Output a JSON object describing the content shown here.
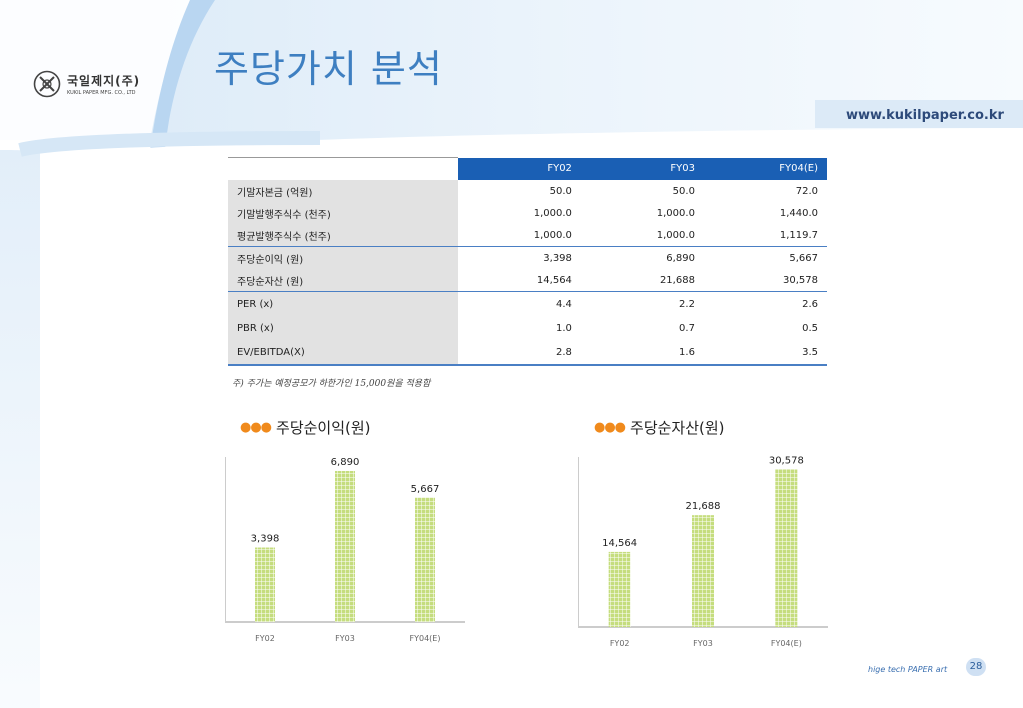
{
  "title": "주당가치 분석",
  "website": "www.kukilpaper.co.kr",
  "logo": {
    "name_kr": "국일제지(주)",
    "name_en": "KUKIL PAPER MFG. CO., LTD",
    "icon": "logo-circle-x-icon"
  },
  "table": {
    "columns": [
      "FY02",
      "FY03",
      "FY04(E)"
    ],
    "rows": [
      {
        "label": "기말자본금 (억원)",
        "values": [
          "50.0",
          "50.0",
          "72.0"
        ]
      },
      {
        "label": "기말발행주식수 (천주)",
        "values": [
          "1,000.0",
          "1,000.0",
          "1,440.0"
        ]
      },
      {
        "label": "평균발행주식수 (천주)",
        "values": [
          "1,000.0",
          "1,000.0",
          "1,119.7"
        ]
      },
      {
        "label": "주당순이익 (원)",
        "values": [
          "3,398",
          "6,890",
          "5,667"
        ]
      },
      {
        "label": "주당순자산 (원)",
        "values": [
          "14,564",
          "21,688",
          "30,578"
        ]
      },
      {
        "label": "PER (x)",
        "values": [
          "4.4",
          "2.2",
          "2.6"
        ]
      },
      {
        "label": "PBR (x)",
        "values": [
          "1.0",
          "0.7",
          "0.5"
        ]
      },
      {
        "label": "EV/EBITDA(X)",
        "values": [
          "2.8",
          "1.6",
          "3.5"
        ]
      }
    ]
  },
  "note": "주) 주가는 예정공모가 하한가인 15,000원을 적용함",
  "chart_data": [
    {
      "type": "bar",
      "title": "주당순이익(원)",
      "categories": [
        "FY02",
        "FY03",
        "FY04(E)"
      ],
      "values": [
        3398,
        6890,
        5667
      ],
      "value_labels": [
        "3,398",
        "6,890",
        "5,667"
      ],
      "ylim": [
        0,
        7300
      ],
      "bar_color": "#c5dd7e",
      "grid": false,
      "legend": "none"
    },
    {
      "type": "bar",
      "title": "주당순자산(원)",
      "categories": [
        "FY02",
        "FY03",
        "FY04(E)"
      ],
      "values": [
        14564,
        21688,
        30578
      ],
      "value_labels": [
        "14,564",
        "21,688",
        "30,578"
      ],
      "ylim": [
        0,
        32000
      ],
      "bar_color": "#c5dd7e",
      "grid": false,
      "legend": "none"
    }
  ],
  "footer": {
    "brand": "hige tech PAPER art",
    "page_number": "28"
  },
  "colors": {
    "title": "#3e7fc1",
    "header": "#1a5fb4",
    "accent_dots": "#f08a1c"
  }
}
